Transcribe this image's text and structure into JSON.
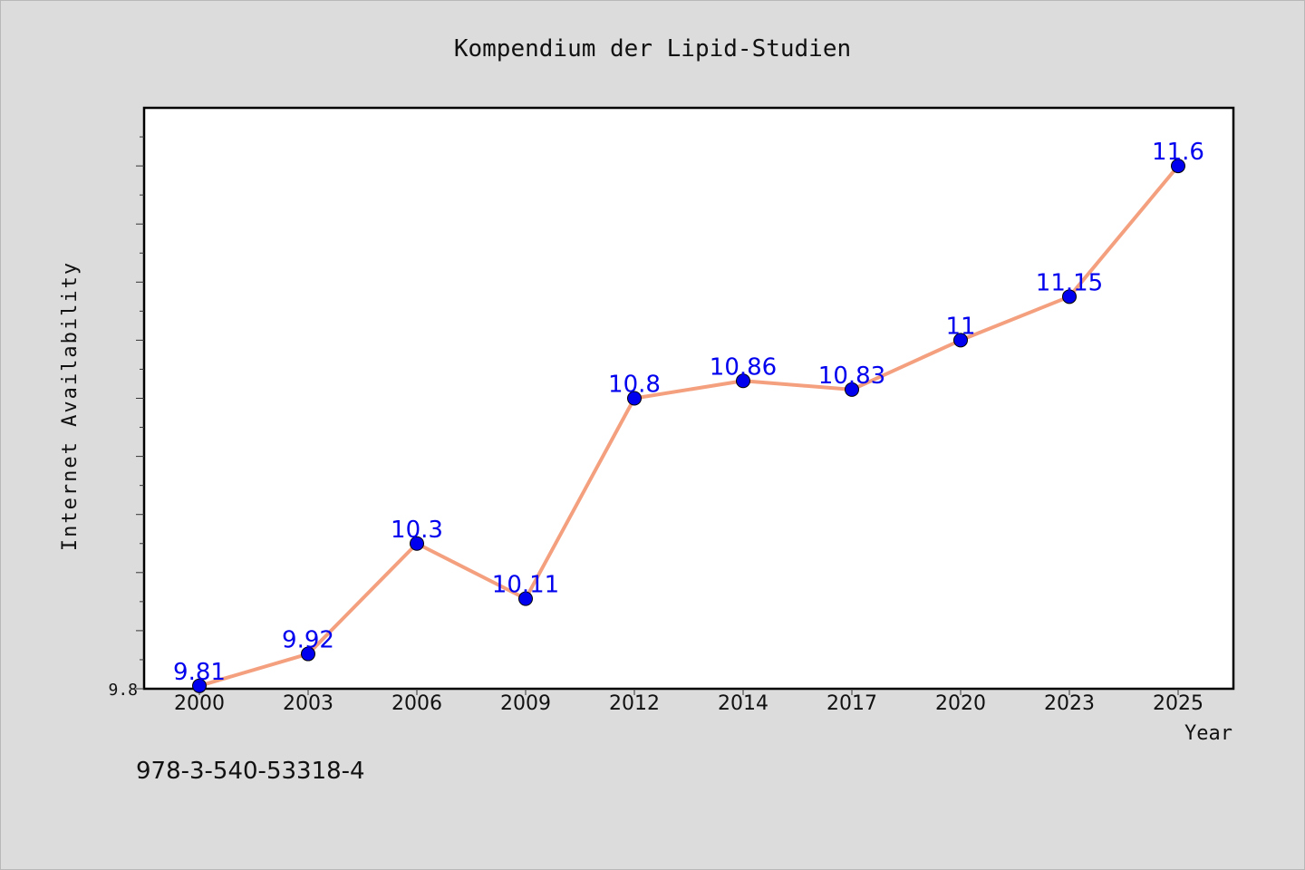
{
  "chart_data": {
    "type": "line",
    "title": "Kompendium der Lipid-Studien",
    "xlabel": "Year",
    "ylabel": "Internet Availability",
    "x": [
      "2000",
      "2003",
      "2006",
      "2009",
      "2012",
      "2014",
      "2017",
      "2020",
      "2023",
      "2025"
    ],
    "series": [
      {
        "values": [
          9.81,
          9.92,
          10.3,
          10.11,
          10.8,
          10.86,
          10.83,
          11,
          11.15,
          11.6
        ],
        "data_labels": [
          "9.81",
          "9.92",
          "10.3",
          "10.11",
          "10.8",
          "10.86",
          "10.83",
          "11",
          "11.15",
          "11.6"
        ]
      }
    ],
    "ylim": [
      9.8,
      11.8
    ],
    "y_tick_labels": [
      "9.8"
    ],
    "grid": false,
    "line_color": "#f4a07f",
    "marker_color": "#0000ee",
    "label_color": "#0000ee"
  },
  "footer": {
    "isbn": "978-3-540-53318-4"
  }
}
